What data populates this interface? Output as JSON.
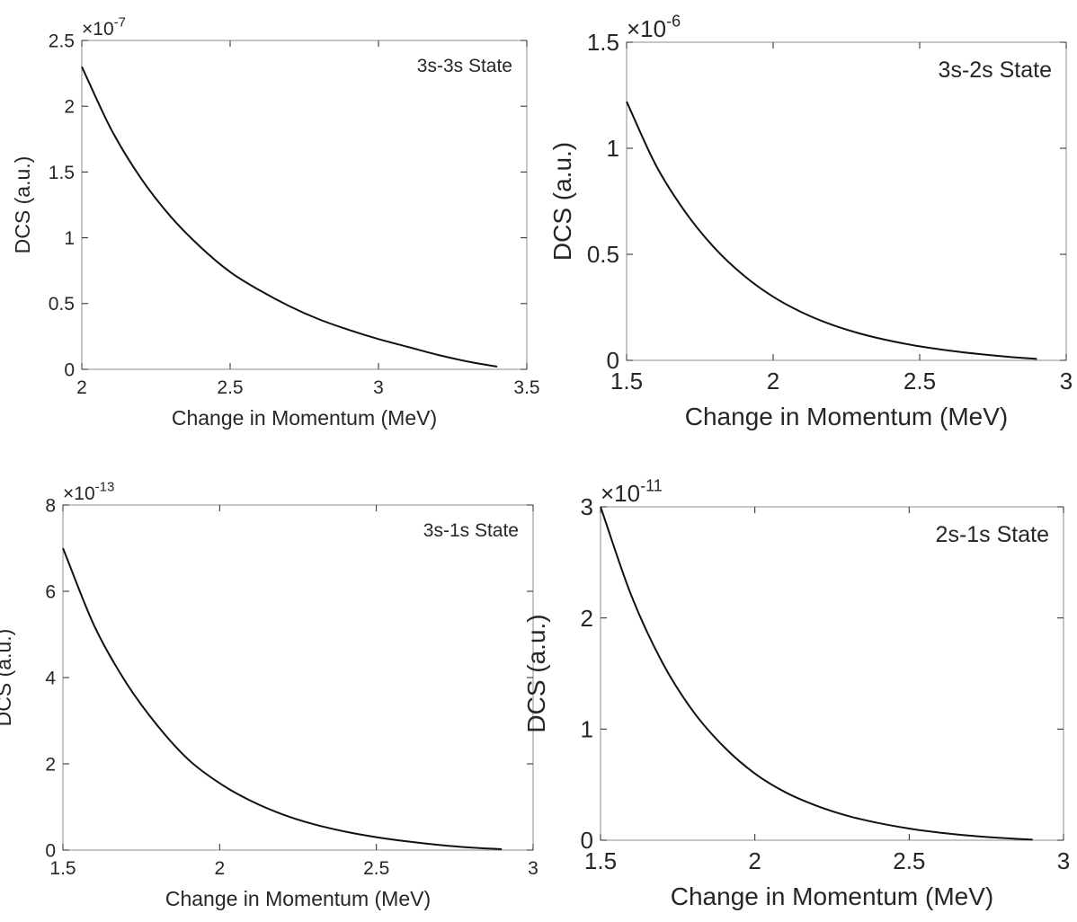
{
  "chart_data": [
    {
      "type": "line",
      "xlabel": "Change in Momentum (MeV)",
      "ylabel": "DCS (a.u.)",
      "annotation": "3s-3s State",
      "y_exponent": "-7",
      "xlim": [
        2,
        3.5
      ],
      "ylim": [
        0,
        2.5
      ],
      "xticks": [
        "2",
        "2.5",
        "3",
        "3.5"
      ],
      "yticks": [
        "0",
        "0.5",
        "1",
        "1.5",
        "2",
        "2.5"
      ],
      "grid": false,
      "series": [
        {
          "x": [
            2.0,
            2.1,
            2.2,
            2.3,
            2.4,
            2.5,
            2.6,
            2.7,
            2.8,
            2.9,
            3.0,
            3.1,
            3.2,
            3.3,
            3.4
          ],
          "y": [
            2.3,
            1.82,
            1.45,
            1.16,
            0.93,
            0.74,
            0.6,
            0.48,
            0.38,
            0.3,
            0.23,
            0.17,
            0.11,
            0.06,
            0.02
          ]
        }
      ]
    },
    {
      "type": "line",
      "xlabel": "Change in Momentum (MeV)",
      "ylabel": "DCS (a.u.)",
      "annotation": "3s-2s State",
      "y_exponent": "-6",
      "xlim": [
        1.5,
        3
      ],
      "ylim": [
        0,
        1.5
      ],
      "xticks": [
        "1.5",
        "2",
        "2.5",
        "3"
      ],
      "yticks": [
        "0",
        "0.5",
        "1",
        "1.5"
      ],
      "grid": false,
      "series": [
        {
          "x": [
            1.5,
            1.6,
            1.7,
            1.8,
            1.9,
            2.0,
            2.1,
            2.2,
            2.3,
            2.4,
            2.5,
            2.6,
            2.7,
            2.8,
            2.9
          ],
          "y": [
            1.22,
            0.92,
            0.7,
            0.53,
            0.4,
            0.3,
            0.225,
            0.168,
            0.125,
            0.092,
            0.066,
            0.046,
            0.03,
            0.017,
            0.007
          ]
        }
      ]
    },
    {
      "type": "line",
      "xlabel": "Change in Momentum (MeV)",
      "ylabel": "DCS (a.u.)",
      "annotation": "3s-1s State",
      "y_exponent": "-13",
      "xlim": [
        1.5,
        3
      ],
      "ylim": [
        0,
        8
      ],
      "xticks": [
        "1.5",
        "2",
        "2.5",
        "3"
      ],
      "yticks": [
        "0",
        "2",
        "4",
        "6",
        "8"
      ],
      "grid": false,
      "series": [
        {
          "x": [
            1.5,
            1.6,
            1.7,
            1.8,
            1.9,
            2.0,
            2.1,
            2.2,
            2.3,
            2.4,
            2.5,
            2.6,
            2.7,
            2.8,
            2.9
          ],
          "y": [
            7.0,
            5.2,
            3.9,
            2.9,
            2.1,
            1.55,
            1.14,
            0.83,
            0.6,
            0.43,
            0.3,
            0.2,
            0.12,
            0.06,
            0.02
          ]
        }
      ]
    },
    {
      "type": "line",
      "xlabel": "Change in Momentum (MeV)",
      "ylabel": "DCS (a.u.)",
      "annotation": "2s-1s State",
      "y_exponent": "-11",
      "xlim": [
        1.5,
        3
      ],
      "ylim": [
        0,
        3
      ],
      "xticks": [
        "1.5",
        "2",
        "2.5",
        "3"
      ],
      "yticks": [
        "0",
        "1",
        "2",
        "3"
      ],
      "grid": false,
      "series": [
        {
          "x": [
            1.5,
            1.6,
            1.7,
            1.8,
            1.9,
            2.0,
            2.1,
            2.2,
            2.3,
            2.4,
            2.5,
            2.6,
            2.7,
            2.8,
            2.9
          ],
          "y": [
            3.0,
            2.2,
            1.6,
            1.16,
            0.84,
            0.6,
            0.43,
            0.31,
            0.22,
            0.155,
            0.105,
            0.068,
            0.04,
            0.02,
            0.005
          ]
        }
      ]
    }
  ]
}
